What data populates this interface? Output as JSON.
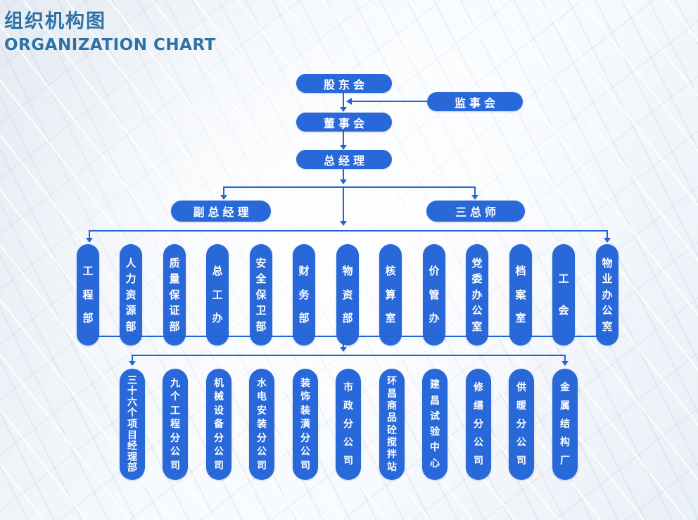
{
  "page": {
    "title_zh": "组织机构图",
    "title_en": "ORGANIZATION CHART"
  },
  "colors": {
    "node_blue": "#2868d8",
    "line_blue": "#2263d6",
    "title_blue": "#2e72a4"
  },
  "nodes": {
    "shareholders": "股东会",
    "supervisory_board": "监事会",
    "board_of_directors": "董事会",
    "general_manager": "总经理",
    "deputy_general_manager": "副总经理",
    "three_chief_engineers": "三总师"
  },
  "departments": [
    "工程部",
    "人力资源部",
    "质量保证部",
    "总工办",
    "安全保卫部",
    "财务部",
    "物资部",
    "核算室",
    "价管办",
    "党委办公室",
    "档案室",
    "工会",
    "物业办公室"
  ],
  "subsidiaries": [
    "三十六个项目经理部",
    "九个工程分公司",
    "机械设备分公司",
    "水电安装分公司",
    "装饰装潢分公司",
    "市政分公司",
    "环昌商品砼搅拌站",
    "建昌试验中心",
    "修缮分公司",
    "供暖分公司",
    "金属结构厂"
  ]
}
